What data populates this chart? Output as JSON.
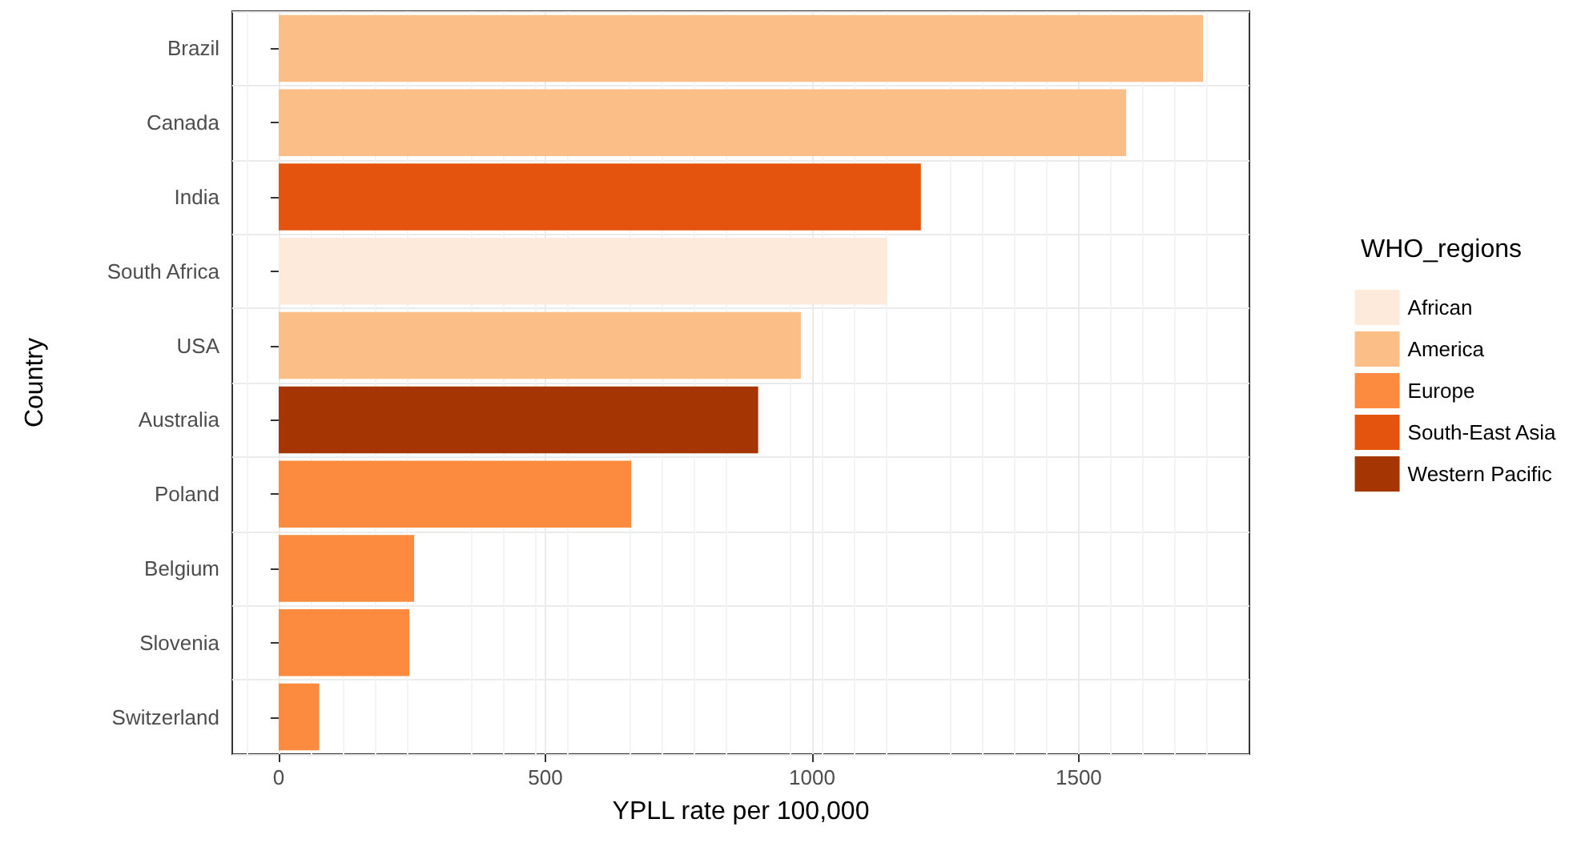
{
  "chart_data": {
    "type": "bar",
    "orientation": "horizontal",
    "xlabel": "YPLL rate per 100,000",
    "ylabel": "Country",
    "legend_title": "WHO_regions",
    "legend": "right",
    "grid": true,
    "categories": [
      "Brazil",
      "Canada",
      "India",
      "South Africa",
      "USA",
      "Australia",
      "Poland",
      "Belgium",
      "Slovenia",
      "Switzerland"
    ],
    "xlim": [
      -87,
      1820
    ],
    "xticks": [
      0,
      500,
      1000,
      1500
    ],
    "series": [
      {
        "name": "African",
        "color": "#feeadb",
        "values": [
          null,
          null,
          null,
          1140,
          null,
          null,
          null,
          null,
          null,
          null
        ]
      },
      {
        "name": "America",
        "color": "#fbbe87",
        "values": [
          1733,
          1589,
          null,
          null,
          979,
          null,
          null,
          null,
          null,
          null
        ]
      },
      {
        "name": "Europe",
        "color": "#fc8b3f",
        "values": [
          null,
          null,
          null,
          null,
          null,
          null,
          661,
          254,
          245,
          76
        ]
      },
      {
        "name": "South-East Asia",
        "color": "#e4540f",
        "values": [
          null,
          null,
          1204,
          null,
          null,
          null,
          null,
          null,
          null,
          null
        ]
      },
      {
        "name": "Western Pacific",
        "color": "#a53503",
        "values": [
          null,
          null,
          null,
          null,
          null,
          899,
          null,
          null,
          null,
          null
        ]
      }
    ]
  }
}
